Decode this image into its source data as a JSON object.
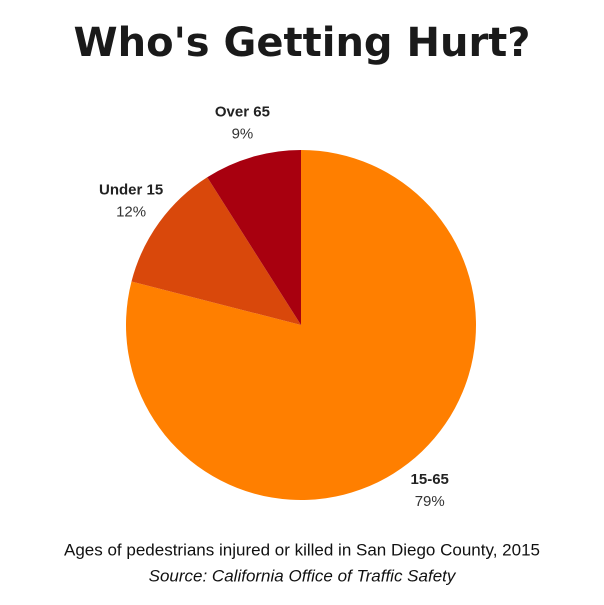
{
  "chart_data": {
    "type": "pie",
    "title": "Who's Getting Hurt?",
    "categories": [
      "15-65",
      "Under 15",
      "Over 65"
    ],
    "values": [
      79,
      12,
      9
    ],
    "value_labels": [
      "79%",
      "12%",
      "9%"
    ],
    "colors": [
      "#ff7f00",
      "#d9480b",
      "#a8000f"
    ],
    "caption": "Ages of pedestrians injured or killed in San Diego County, 2015",
    "source": "Source: California Office of Traffic Safety"
  }
}
